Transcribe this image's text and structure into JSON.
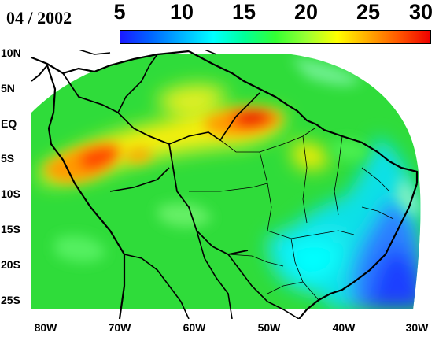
{
  "title": "04 / 2002",
  "colorbar": {
    "ticks": [
      "5",
      "10",
      "15",
      "20",
      "25",
      "30"
    ],
    "min": 5,
    "max": 30,
    "colors": [
      "#1a1aff",
      "#0066ff",
      "#00b4ff",
      "#00ffff",
      "#00ff99",
      "#33ff33",
      "#99ff33",
      "#ffff00",
      "#ffaa00",
      "#ff5500",
      "#ee0000"
    ]
  },
  "axes": {
    "lat_labels": [
      "10N",
      "5N",
      "EQ",
      "5S",
      "10S",
      "15S",
      "20S",
      "25S"
    ],
    "lat_values": [
      10,
      5,
      0,
      -5,
      -10,
      -15,
      -20,
      -25
    ],
    "lon_labels": [
      "80W",
      "70W",
      "60W",
      "50W",
      "40W",
      "30W"
    ],
    "lon_values": [
      -80,
      -70,
      -60,
      -50,
      -40,
      -30
    ]
  },
  "map_extent": {
    "lon_min": -80,
    "lon_max": -30,
    "lat_min": -27.5,
    "lat_max": 10
  },
  "colors": {
    "water": "#ffffff",
    "coast": "#000000",
    "border": "#000000"
  }
}
